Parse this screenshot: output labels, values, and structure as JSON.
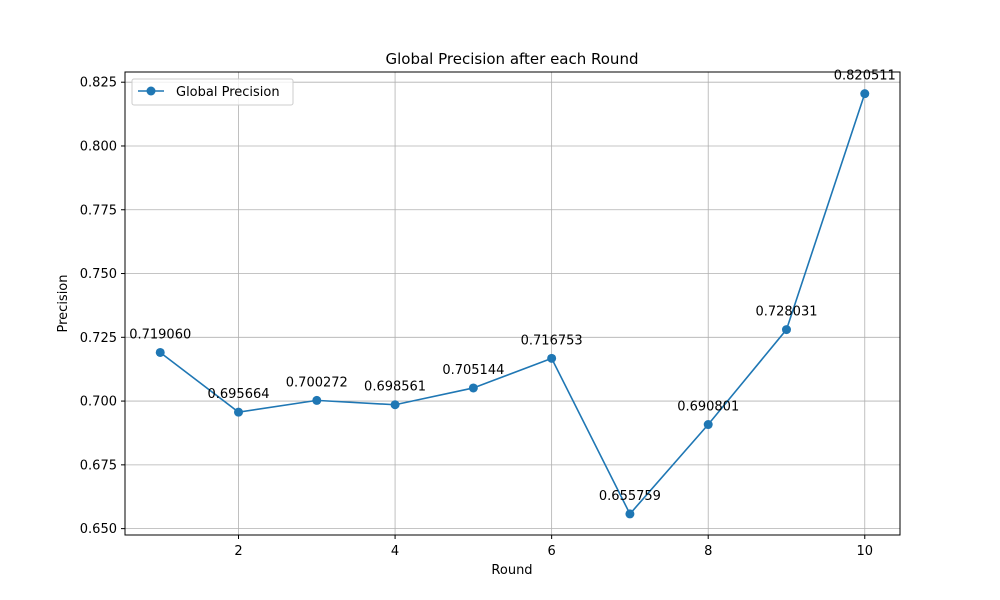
{
  "chart_data": {
    "type": "line",
    "title": "Global Precision after each Round",
    "xlabel": "Round",
    "ylabel": "Precision",
    "x": [
      1,
      2,
      3,
      4,
      5,
      6,
      7,
      8,
      9,
      10
    ],
    "series": [
      {
        "name": "Global Precision",
        "color": "#1f77b4",
        "values": [
          0.71906,
          0.695664,
          0.700272,
          0.698561,
          0.705144,
          0.716753,
          0.655759,
          0.690801,
          0.728031,
          0.820511
        ],
        "labels": [
          "0.719060",
          "0.695664",
          "0.700272",
          "0.698561",
          "0.705144",
          "0.716753",
          "0.655759",
          "0.690801",
          "0.728031",
          "0.820511"
        ]
      }
    ],
    "xlim": [
      0.55,
      10.45
    ],
    "ylim": [
      0.6475,
      0.829
    ],
    "xticks": [
      2,
      4,
      6,
      8,
      10
    ],
    "xtick_labels": [
      "2",
      "4",
      "6",
      "8",
      "10"
    ],
    "yticks": [
      0.65,
      0.675,
      0.7,
      0.725,
      0.75,
      0.775,
      0.8,
      0.825
    ],
    "ytick_labels": [
      "0.650",
      "0.675",
      "0.700",
      "0.725",
      "0.750",
      "0.775",
      "0.800",
      "0.825"
    ],
    "grid": true,
    "legend_position": "top-left"
  }
}
